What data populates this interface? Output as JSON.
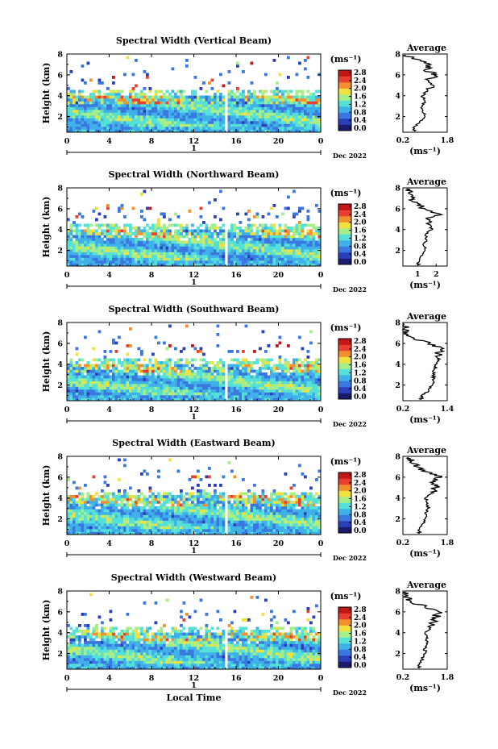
{
  "chart_data": [
    {
      "type": "heatmap",
      "title": "Spectral Width (Vertical Beam)",
      "ylabel": "Height (km)",
      "y_ticks": [
        "2",
        "4",
        "6",
        "8"
      ],
      "x_ticks": [
        "0",
        "4",
        "8",
        "12",
        "16",
        "20",
        "0"
      ],
      "x_day": "1",
      "date_label": "Dec 2022",
      "ylim": [
        0.5,
        8
      ],
      "xlim": [
        0,
        24
      ],
      "colorbar": {
        "unit": "(ms⁻¹)",
        "ticks": [
          "0.0",
          "0.4",
          "0.8",
          "1.2",
          "1.6",
          "2.0",
          "2.4",
          "2.8"
        ]
      },
      "profile": {
        "title": "Average",
        "xlabel": "(ms⁻¹)",
        "x_ticks": [
          "0.2",
          "1.8"
        ],
        "x_tick_values": [
          0.2,
          1.8
        ],
        "xlim": [
          0.2,
          1.8
        ],
        "y_ticks": [
          "2",
          "4",
          "6",
          "8"
        ],
        "heights": [
          0.6,
          1.0,
          1.5,
          2.0,
          2.5,
          3.0,
          3.5,
          4.0,
          4.5,
          5.0,
          5.5,
          6.0,
          6.5,
          7.0,
          7.5,
          7.9
        ],
        "values": [
          0.6,
          0.6,
          0.8,
          1.0,
          0.9,
          0.9,
          1.0,
          0.9,
          1.1,
          1.3,
          1.1,
          1.4,
          1.0,
          1.2,
          0.7,
          0.3
        ]
      }
    },
    {
      "type": "heatmap",
      "title": "Spectral Width (Northward Beam)",
      "ylabel": "Height (km)",
      "y_ticks": [
        "2",
        "4",
        "6",
        "8"
      ],
      "x_ticks": [
        "0",
        "4",
        "8",
        "12",
        "16",
        "20",
        "0"
      ],
      "x_day": "1",
      "date_label": "Dec 2022",
      "ylim": [
        0.5,
        8
      ],
      "xlim": [
        0,
        24
      ],
      "colorbar": {
        "unit": "(ms⁻¹)",
        "ticks": [
          "0.0",
          "0.4",
          "0.8",
          "1.2",
          "1.6",
          "2.0",
          "2.4",
          "2.8"
        ]
      },
      "profile": {
        "title": "Average",
        "xlabel": "(ms⁻¹)",
        "x_ticks": [
          "1",
          "2"
        ],
        "x_tick_values": [
          1,
          2
        ],
        "xlim": [
          0.2,
          2.6
        ],
        "y_ticks": [
          "2",
          "4",
          "6",
          "8"
        ],
        "heights": [
          0.6,
          1.0,
          1.5,
          2.0,
          2.5,
          3.0,
          3.5,
          4.0,
          4.5,
          5.0,
          5.5,
          6.0,
          6.5,
          7.0,
          7.5,
          7.9
        ],
        "values": [
          1.0,
          1.1,
          1.2,
          1.4,
          1.3,
          1.5,
          1.4,
          1.8,
          1.6,
          1.5,
          2.2,
          1.4,
          1.0,
          0.7,
          0.5,
          0.4
        ]
      }
    },
    {
      "type": "heatmap",
      "title": "Spectral Width (Southward Beam)",
      "ylabel": "Height (km)",
      "y_ticks": [
        "2",
        "4",
        "6",
        "8"
      ],
      "x_ticks": [
        "0",
        "4",
        "8",
        "12",
        "16",
        "20",
        "0"
      ],
      "x_day": "1",
      "date_label": "Dec 2022",
      "ylim": [
        0.5,
        8
      ],
      "xlim": [
        0,
        24
      ],
      "colorbar": {
        "unit": "(ms⁻¹)",
        "ticks": [
          "0.0",
          "0.4",
          "0.8",
          "1.2",
          "1.6",
          "2.0",
          "2.4",
          "2.8"
        ]
      },
      "profile": {
        "title": "Average",
        "xlabel": "(ms⁻¹)",
        "x_ticks": [
          "0.2",
          "1.4"
        ],
        "x_tick_values": [
          0.2,
          1.4
        ],
        "xlim": [
          0.2,
          1.4
        ],
        "y_ticks": [
          "2",
          "4",
          "6",
          "8"
        ],
        "heights": [
          0.6,
          1.0,
          1.5,
          2.0,
          2.5,
          3.0,
          3.5,
          4.0,
          4.5,
          5.0,
          5.5,
          6.0,
          6.5,
          7.0,
          7.5,
          7.9
        ],
        "values": [
          0.7,
          0.7,
          0.9,
          1.0,
          1.0,
          1.05,
          1.05,
          1.1,
          1.2,
          1.15,
          1.3,
          0.9,
          0.5,
          0.3,
          0.25,
          0.2
        ]
      }
    },
    {
      "type": "heatmap",
      "title": "Spectral Width (Eastward Beam)",
      "ylabel": "Height (km)",
      "y_ticks": [
        "2",
        "4",
        "6",
        "8"
      ],
      "x_ticks": [
        "0",
        "4",
        "8",
        "12",
        "16",
        "20",
        "0"
      ],
      "x_day": "1",
      "date_label": "Dec 2022",
      "ylim": [
        0.5,
        8
      ],
      "xlim": [
        0,
        24
      ],
      "colorbar": {
        "unit": "(ms⁻¹)",
        "ticks": [
          "0.0",
          "0.4",
          "0.8",
          "1.2",
          "1.6",
          "2.0",
          "2.4",
          "2.8"
        ]
      },
      "profile": {
        "title": "Average",
        "xlabel": "(ms⁻¹)",
        "x_ticks": [
          "0.2",
          "1.8"
        ],
        "x_tick_values": [
          0.2,
          1.8
        ],
        "xlim": [
          0.2,
          1.8
        ],
        "y_ticks": [
          "2",
          "4",
          "6",
          "8"
        ],
        "heights": [
          0.6,
          1.0,
          1.5,
          2.0,
          2.5,
          3.0,
          3.5,
          4.0,
          4.5,
          5.0,
          5.5,
          6.0,
          6.5,
          7.0,
          7.5,
          7.9
        ],
        "values": [
          0.8,
          0.8,
          0.9,
          1.0,
          1.0,
          1.1,
          1.1,
          1.0,
          1.3,
          1.4,
          1.2,
          1.6,
          1.1,
          0.7,
          0.5,
          0.4
        ]
      }
    },
    {
      "type": "heatmap",
      "title": "Spectral Width (Westward Beam)",
      "ylabel": "Height (km)",
      "xlabel": "Local Time",
      "y_ticks": [
        "2",
        "4",
        "6",
        "8"
      ],
      "x_ticks": [
        "0",
        "4",
        "8",
        "12",
        "16",
        "20",
        "0"
      ],
      "x_day": "1",
      "date_label": "Dec 2022",
      "ylim": [
        0.5,
        8
      ],
      "xlim": [
        0,
        24
      ],
      "colorbar": {
        "unit": "(ms⁻¹)",
        "ticks": [
          "0.0",
          "0.4",
          "0.8",
          "1.2",
          "1.6",
          "2.0",
          "2.4",
          "2.8"
        ]
      },
      "profile": {
        "title": "Average",
        "xlabel": "(ms⁻¹)",
        "x_ticks": [
          "0.2",
          "1.8"
        ],
        "x_tick_values": [
          0.2,
          1.8
        ],
        "xlim": [
          0.2,
          1.8
        ],
        "y_ticks": [
          "2",
          "4",
          "6",
          "8"
        ],
        "heights": [
          0.6,
          1.0,
          1.5,
          2.0,
          2.5,
          3.0,
          3.5,
          4.0,
          4.5,
          5.0,
          5.5,
          6.0,
          6.5,
          7.0,
          7.5,
          7.9
        ],
        "values": [
          0.8,
          0.8,
          0.9,
          1.0,
          1.0,
          1.05,
          1.1,
          1.0,
          1.2,
          1.3,
          1.4,
          1.5,
          1.0,
          0.5,
          0.3,
          0.3
        ]
      }
    }
  ],
  "colors": {
    "scale": [
      "#1c1c6e",
      "#2a3fb8",
      "#3a78e0",
      "#3fb0e8",
      "#55e0d8",
      "#a6ee88",
      "#f0e040",
      "#f09030",
      "#e84030",
      "#c01818"
    ]
  }
}
